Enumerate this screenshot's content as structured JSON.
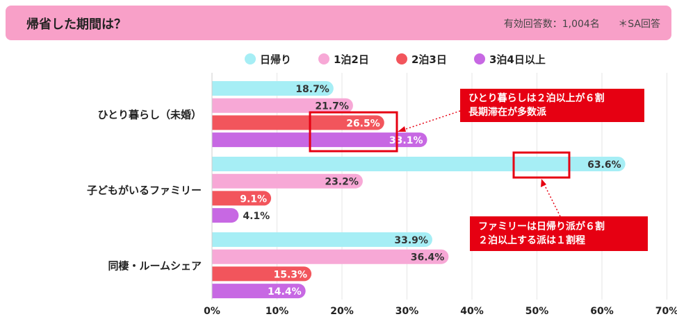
{
  "header": {
    "title": "帰省した期間は？",
    "respondents": "有効回答数：1,004名",
    "answer_type": "＊SA回答"
  },
  "callouts": {
    "single": [
      "ひとり暮らしは２泊以上が６割",
      "長期滞在が多数派"
    ],
    "family": [
      "ファミリーは日帰り派が６割",
      "２泊以上する派は１割程"
    ]
  },
  "colors": {
    "header_bg": "#f8a0c8",
    "s1": "#a6eef5",
    "s2": "#f7a8d6",
    "s3": "#f2555c",
    "s4": "#c768e3",
    "highlight": "#e60012"
  },
  "chart_data": {
    "type": "bar",
    "orientation": "horizontal",
    "title": "帰省した期間は？",
    "categories": [
      "ひとり暮らし（未婚）",
      "子どもがいるファミリー",
      "同棲・ルームシェア"
    ],
    "series": [
      {
        "name": "日帰り",
        "values": [
          18.7,
          63.6,
          33.9
        ],
        "labels": [
          "18.7%",
          "63.6%",
          "33.9%"
        ]
      },
      {
        "name": "1泊2日",
        "values": [
          21.7,
          23.2,
          36.4
        ],
        "labels": [
          "21.7%",
          "23.2%",
          "36.4%"
        ]
      },
      {
        "name": "2泊3日",
        "values": [
          26.5,
          9.1,
          15.3
        ],
        "labels": [
          "26.5%",
          "9.1%",
          "15.3%"
        ]
      },
      {
        "name": "3泊4日以上",
        "values": [
          33.1,
          4.1,
          14.4
        ],
        "labels": [
          "33.1%",
          "4.1%",
          "14.4%"
        ]
      }
    ],
    "xlim": [
      0,
      70
    ],
    "ticks": [
      0,
      10,
      20,
      30,
      40,
      50,
      60,
      70
    ],
    "tick_labels": [
      "0%",
      "10%",
      "20%",
      "30%",
      "40%",
      "50%",
      "60%",
      "70%"
    ],
    "legend_position": "top-center",
    "grid": true
  }
}
